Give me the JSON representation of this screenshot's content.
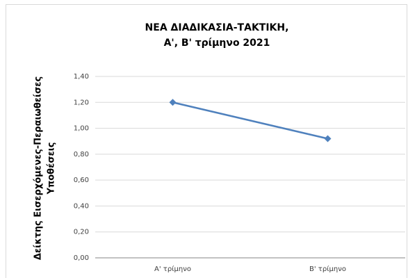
{
  "chart_data": {
    "type": "line",
    "title": [
      "ΝΕΑ ΔΙΑΔΙΚΑΣΙΑ-ΤΑΚΤΙΚΗ,",
      "Α', Β' τρίμηνο 2021"
    ],
    "y_label": [
      "Δείκτης Εισερχόμενες-Περαιωθείσες",
      "Υποθέσεις"
    ],
    "categories": [
      "Α' τρίμηνο",
      "Β' τρίμηνο"
    ],
    "series": [
      {
        "name": "Δείκτης",
        "color": "#4f81bd",
        "values": [
          1.2,
          0.92
        ]
      }
    ],
    "ylim": [
      0,
      1.4
    ],
    "yticks": [
      {
        "value": 0,
        "label": "0,00"
      },
      {
        "value": 0.2,
        "label": "0,20"
      },
      {
        "value": 0.4,
        "label": "0,40"
      },
      {
        "value": 0.6,
        "label": "0,60"
      },
      {
        "value": 0.8,
        "label": "0,80"
      },
      {
        "value": 1.0,
        "label": "1,00"
      },
      {
        "value": 1.2,
        "label": "1,20"
      },
      {
        "value": 1.4,
        "label": "1,40"
      }
    ],
    "grid": true
  }
}
